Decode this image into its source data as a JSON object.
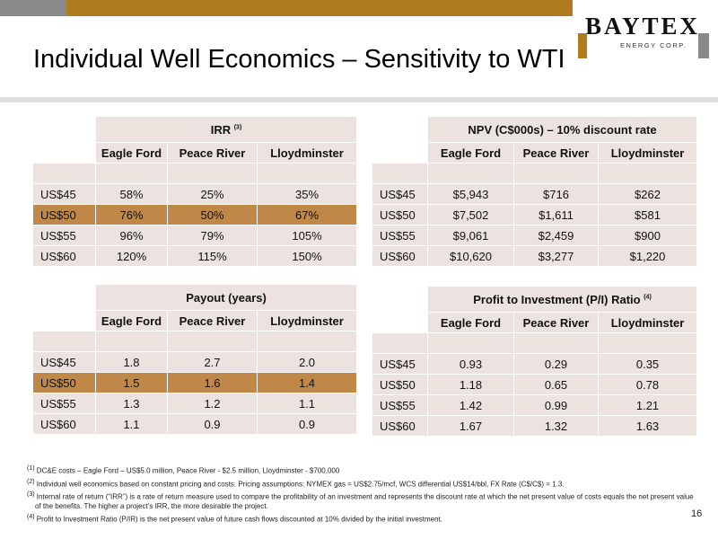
{
  "header": {
    "logo_brand": "BAYTEX",
    "logo_sub": "ENERGY CORP.",
    "title": "Individual Well Economics – Sensitivity to WTI"
  },
  "columns": [
    "Eagle Ford",
    "Peace River",
    "Lloydminster"
  ],
  "irr": {
    "title": "IRR",
    "title_note": "(3)",
    "rows": [
      {
        "label": "US$45",
        "values": [
          "58%",
          "25%",
          "35%"
        ]
      },
      {
        "label": "US$50",
        "values": [
          "76%",
          "50%",
          "67%"
        ]
      },
      {
        "label": "US$55",
        "values": [
          "96%",
          "79%",
          "105%"
        ]
      },
      {
        "label": "US$60",
        "values": [
          "120%",
          "115%",
          "150%"
        ]
      }
    ]
  },
  "npv": {
    "title": "NPV (C$000s) – 10% discount rate",
    "title_note": "",
    "rows": [
      {
        "label": "US$45",
        "values": [
          "$5,943",
          "$716",
          "$262"
        ]
      },
      {
        "label": "US$50",
        "values": [
          "$7,502",
          "$1,611",
          "$581"
        ]
      },
      {
        "label": "US$55",
        "values": [
          "$9,061",
          "$2,459",
          "$900"
        ]
      },
      {
        "label": "US$60",
        "values": [
          "$10,620",
          "$3,277",
          "$1,220"
        ]
      }
    ]
  },
  "payout": {
    "title": "Payout (years)",
    "title_note": "",
    "rows": [
      {
        "label": "US$45",
        "values": [
          "1.8",
          "2.7",
          "2.0"
        ]
      },
      {
        "label": "US$50",
        "values": [
          "1.5",
          "1.6",
          "1.4"
        ]
      },
      {
        "label": "US$55",
        "values": [
          "1.3",
          "1.2",
          "1.1"
        ]
      },
      {
        "label": "US$60",
        "values": [
          "1.1",
          "0.9",
          "0.9"
        ]
      }
    ]
  },
  "pi": {
    "title": "Profit to Investment (P/I) Ratio",
    "title_note": "(4)",
    "rows": [
      {
        "label": "US$45",
        "values": [
          "0.93",
          "0.29",
          "0.35"
        ]
      },
      {
        "label": "US$50",
        "values": [
          "1.18",
          "0.65",
          "0.78"
        ]
      },
      {
        "label": "US$55",
        "values": [
          "1.42",
          "0.99",
          "1.21"
        ]
      },
      {
        "label": "US$60",
        "values": [
          "1.67",
          "1.32",
          "1.63"
        ]
      }
    ]
  },
  "footnotes": [
    {
      "num": "(1)",
      "text": "DC&E costs – Eagle Ford – US$5.0 million, Peace River - $2.5 million, Lloydminster - $700,000"
    },
    {
      "num": "(2)",
      "text": "Individual well economics based on constant pricing and costs. Pricing assumptions:  NYMEX gas = US$2.75/mcf, WCS differential US$14/bbl, FX Rate (C$/C$) = 1.3."
    },
    {
      "num": "(3)",
      "text": "Internal rate of return (“IRR”) is a rate of return measure used to compare the profitability of an investment and represents the discount rate at which the net present value of costs equals the net present value of the benefits. The higher a project’s IRR, the more desirable the project."
    },
    {
      "num": "(4)",
      "text": "Profit to Investment Ratio (P/IR) is the net present value of future cash flows discounted at 10% divided by the initial investment."
    }
  ],
  "page_number": "16",
  "colors": {
    "accent_gold": "#b07d1e",
    "accent_grey": "#8a8a8a",
    "cell_bg": "#ece3e1",
    "highlight_row": "#c08848"
  }
}
